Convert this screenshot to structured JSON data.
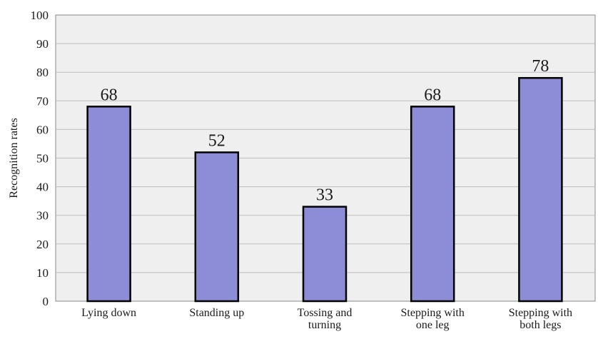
{
  "chart_data": {
    "type": "bar",
    "categories": [
      [
        "Lying down"
      ],
      [
        "Standing up"
      ],
      [
        "Tossing and",
        "turning"
      ],
      [
        "Stepping with",
        "one leg"
      ],
      [
        "Stepping with",
        "both legs"
      ]
    ],
    "values": [
      68,
      52,
      33,
      68,
      78
    ],
    "title": "",
    "xlabel": "",
    "ylabel": "Recognition rates",
    "ylim": [
      0,
      100
    ],
    "yticks": [
      "0",
      "10",
      "20",
      "30",
      "40",
      "50",
      "60",
      "70",
      "80",
      "90",
      "100"
    ],
    "grid": true,
    "legend": "none",
    "colors": {
      "bar_fill": "#8c8dd6",
      "bar_edge": "#000000",
      "plot_background": "#efefef",
      "gridline": "#bdbdbd"
    }
  }
}
